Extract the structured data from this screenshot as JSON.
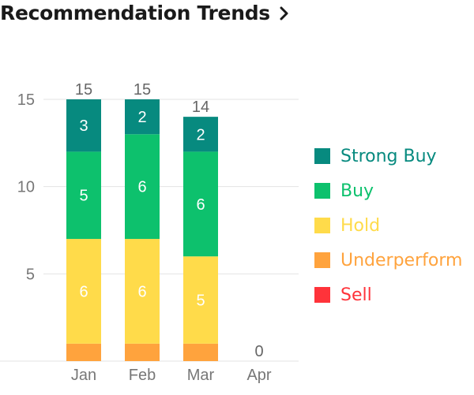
{
  "header": {
    "title": "Recommendation Trends",
    "chevron_icon": "chevron-right-icon"
  },
  "chart_data": {
    "type": "bar",
    "stacked": true,
    "categories": [
      "Jan",
      "Feb",
      "Mar",
      "Apr"
    ],
    "totals": [
      15,
      15,
      14,
      0
    ],
    "ylim": [
      0,
      15
    ],
    "yticks": [
      5,
      10,
      15
    ],
    "grid": true,
    "legend_position": "right",
    "series": [
      {
        "name": "Strong Buy",
        "color": "#078a7f",
        "values": [
          3,
          2,
          2,
          0
        ]
      },
      {
        "name": "Buy",
        "color": "#0dc16d",
        "values": [
          5,
          6,
          6,
          0
        ]
      },
      {
        "name": "Hold",
        "color": "#ffdb4a",
        "values": [
          6,
          6,
          5,
          0
        ]
      },
      {
        "name": "Underperform",
        "color": "#ffa33d",
        "values": [
          1,
          1,
          1,
          0
        ]
      },
      {
        "name": "Sell",
        "color": "#ff333a",
        "values": [
          0,
          0,
          0,
          0
        ]
      }
    ]
  }
}
